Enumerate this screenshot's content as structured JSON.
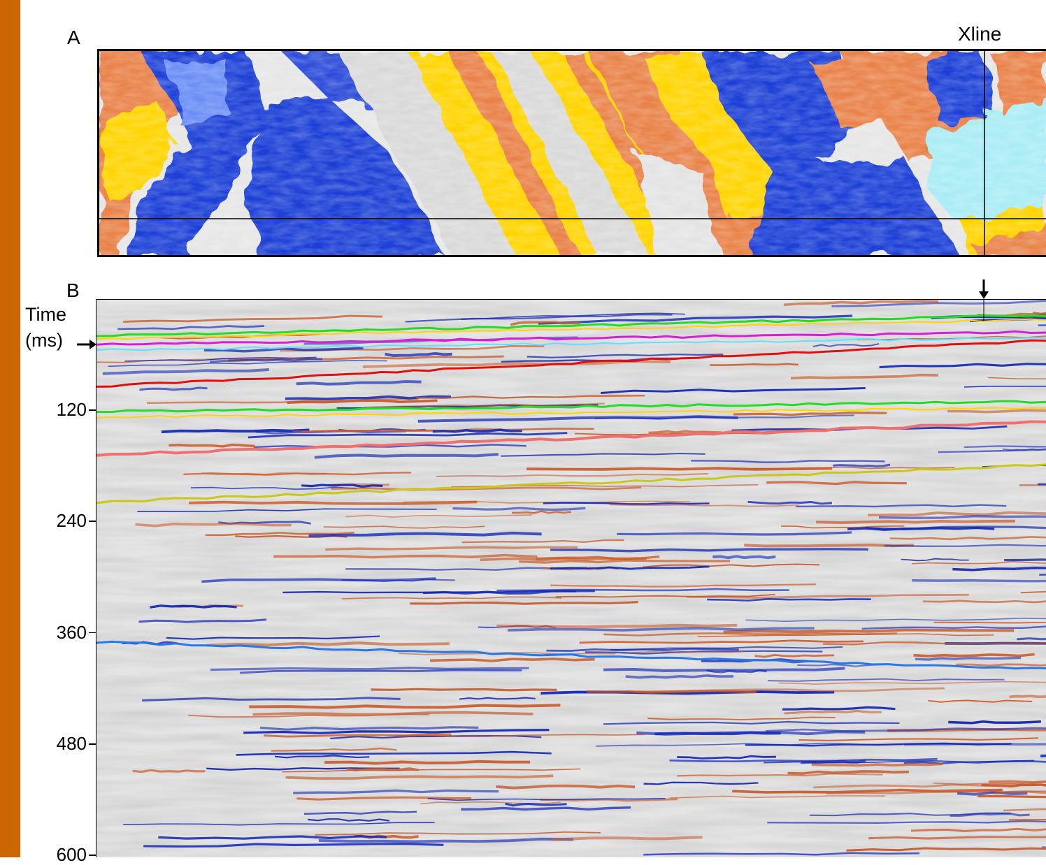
{
  "panel_a": {
    "letter": "A",
    "xline_label": "Xline"
  },
  "panel_b": {
    "letter": "B",
    "axis_title": "Time\n(ms)",
    "ticks": [
      {
        "value": 120,
        "label": "120"
      },
      {
        "value": 240,
        "label": "240"
      },
      {
        "value": 360,
        "label": "360"
      },
      {
        "value": 480,
        "label": "480"
      },
      {
        "value": 600,
        "label": "600"
      }
    ]
  },
  "colors": {
    "side_bar": "#cc6600",
    "map_blue": "#1f3fd6",
    "map_yellow": "#ffd400",
    "map_orange": "#e9824a",
    "map_cyan": "#a9ecf5",
    "seismic_blue": "#1428b4",
    "seismic_red": "#c85a2a",
    "horizon_green": "#22dd22",
    "horizon_red": "#e01010",
    "horizon_magenta": "#d81fd8",
    "horizon_pink": "#f07070",
    "horizon_yellow": "#c8c81a",
    "horizon_cyan": "#60e0ff",
    "horizon_blue": "#2878e8"
  }
}
